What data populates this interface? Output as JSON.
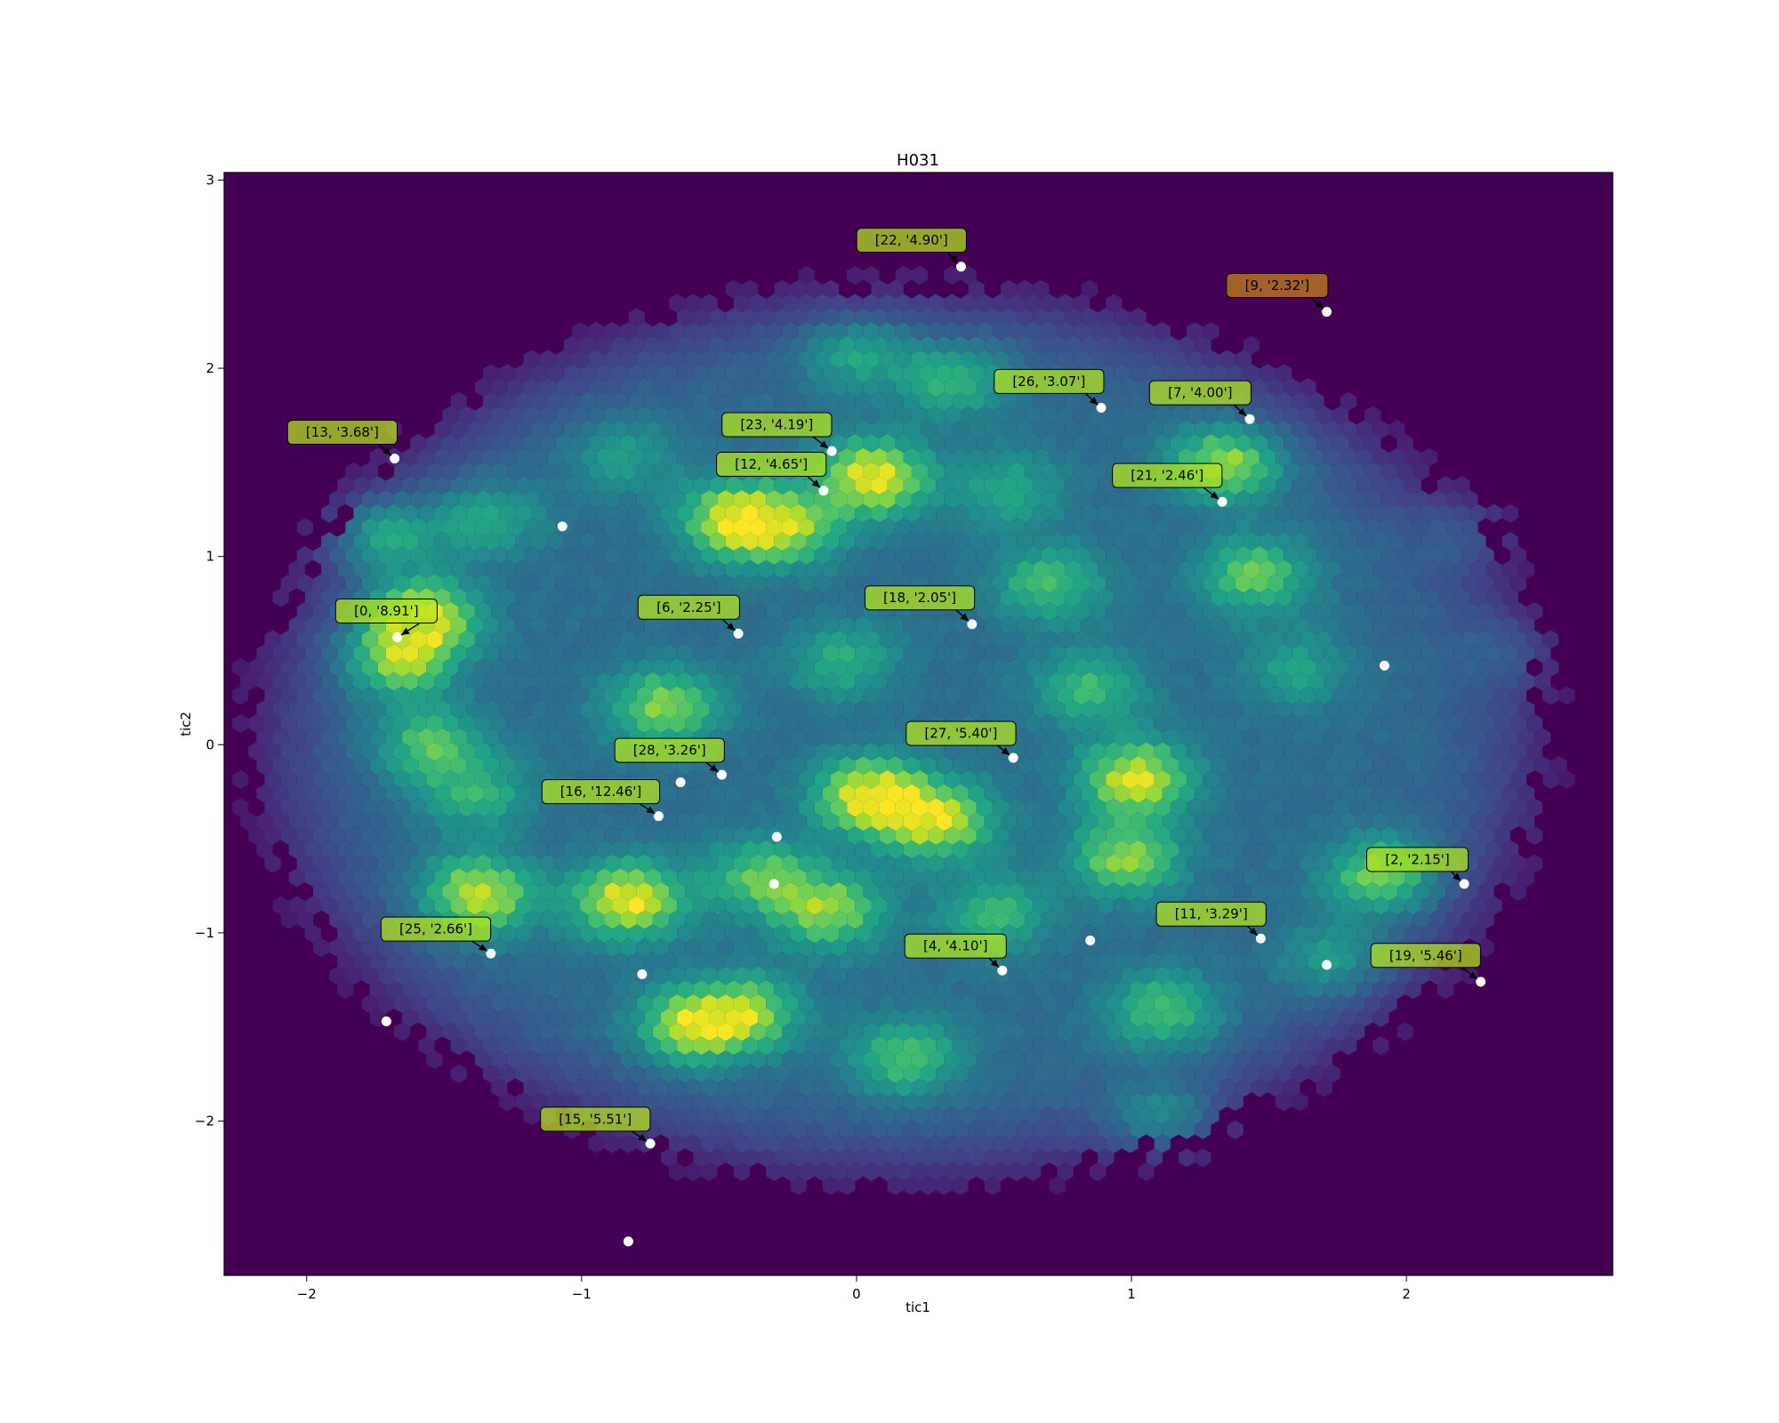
{
  "chart_data": {
    "type": "scatter",
    "background": "hexbin density (viridis)",
    "title": "H031",
    "xlabel": "tic1",
    "ylabel": "tic2",
    "xlim": [
      -2.3,
      2.75
    ],
    "ylim": [
      -2.82,
      3.04
    ],
    "xticks": [
      {
        "value": -2,
        "label": "−2"
      },
      {
        "value": -1,
        "label": "−1"
      },
      {
        "value": 0,
        "label": "0"
      },
      {
        "value": 1,
        "label": "1"
      },
      {
        "value": 2,
        "label": "2"
      }
    ],
    "yticks": [
      {
        "value": -2,
        "label": "−2"
      },
      {
        "value": -1,
        "label": "−1"
      },
      {
        "value": 0,
        "label": "0"
      },
      {
        "value": 1,
        "label": "1"
      },
      {
        "value": 2,
        "label": "2"
      },
      {
        "value": 3,
        "label": "3"
      }
    ],
    "colors": {
      "background": "#440154",
      "marker": "#ffffff",
      "annotation_box": "#b5e61d",
      "annotation_box_highlight": "#c8861a"
    },
    "density_peaks": [
      {
        "x": 0.06,
        "y": 1.42,
        "w": 1.0
      },
      {
        "x": -1.58,
        "y": 0.68,
        "w": 1.0
      },
      {
        "x": -1.76,
        "y": 1.14,
        "w": 0.92
      },
      {
        "x": -1.68,
        "y": 0.45,
        "w": 0.8
      },
      {
        "x": -1.38,
        "y": -0.8,
        "w": 0.95
      },
      {
        "x": -0.83,
        "y": -0.83,
        "w": 1.0
      },
      {
        "x": 0.05,
        "y": -0.27,
        "w": 1.0
      },
      {
        "x": 0.3,
        "y": -0.4,
        "w": 0.9
      },
      {
        "x": 1.02,
        "y": -0.18,
        "w": 0.95
      },
      {
        "x": 0.98,
        "y": -0.6,
        "w": 0.75
      },
      {
        "x": 1.15,
        "y": -2.06,
        "w": 1.0
      },
      {
        "x": -0.6,
        "y": -1.5,
        "w": 0.85
      },
      {
        "x": -0.4,
        "y": -1.42,
        "w": 0.7
      },
      {
        "x": -0.45,
        "y": 1.2,
        "w": 0.85
      },
      {
        "x": -0.25,
        "y": 1.15,
        "w": 0.7
      },
      {
        "x": 1.35,
        "y": 1.5,
        "w": 0.85
      },
      {
        "x": 2.3,
        "y": 1.17,
        "w": 0.7
      },
      {
        "x": 1.92,
        "y": -0.7,
        "w": 0.8
      },
      {
        "x": -0.7,
        "y": 0.2,
        "w": 0.75
      },
      {
        "x": -0.1,
        "y": -0.88,
        "w": 0.75
      },
      {
        "x": -0.35,
        "y": -0.7,
        "w": 0.6
      },
      {
        "x": 0.7,
        "y": 0.85,
        "w": 0.55
      },
      {
        "x": 1.45,
        "y": 0.9,
        "w": 0.65
      },
      {
        "x": 0.35,
        "y": 1.95,
        "w": 0.55
      },
      {
        "x": 0.0,
        "y": 2.1,
        "w": 0.5
      },
      {
        "x": -1.55,
        "y": 0.0,
        "w": 0.6
      },
      {
        "x": -1.38,
        "y": -0.27,
        "w": 0.45
      },
      {
        "x": -1.35,
        "y": 1.2,
        "w": 0.45
      },
      {
        "x": 0.18,
        "y": -1.67,
        "w": 0.6
      },
      {
        "x": 1.12,
        "y": -1.42,
        "w": 0.6
      },
      {
        "x": 2.45,
        "y": 0.52,
        "w": 0.45
      },
      {
        "x": 0.5,
        "y": -0.9,
        "w": 0.5
      },
      {
        "x": -0.05,
        "y": 0.45,
        "w": 0.45
      },
      {
        "x": 0.85,
        "y": 0.3,
        "w": 0.5
      },
      {
        "x": 1.6,
        "y": 0.4,
        "w": 0.35
      },
      {
        "x": -0.85,
        "y": 1.55,
        "w": 0.35
      },
      {
        "x": 0.55,
        "y": 1.35,
        "w": 0.4
      },
      {
        "x": 1.75,
        "y": -1.15,
        "w": 0.4
      }
    ],
    "points": [
      {
        "x": -1.67,
        "y": 0.57,
        "label": "[0, '8.91']",
        "lx": -1.71,
        "ly": 0.71
      },
      {
        "x": 2.21,
        "y": -0.74,
        "label": "[2, '2.15']",
        "lx": 2.04,
        "ly": -0.61
      },
      {
        "x": 0.53,
        "y": -1.2,
        "label": "[4, '4.10']",
        "lx": 0.36,
        "ly": -1.07
      },
      {
        "x": -0.43,
        "y": 0.59,
        "label": "[6, '2.25']",
        "lx": -0.61,
        "ly": 0.73
      },
      {
        "x": 1.43,
        "y": 1.73,
        "label": "[7, '4.00']",
        "lx": 1.25,
        "ly": 1.87
      },
      {
        "x": 1.71,
        "y": 2.3,
        "label": "[9, '2.32']",
        "lx": 1.53,
        "ly": 2.44,
        "highlight": true
      },
      {
        "x": 1.47,
        "y": -1.03,
        "label": "[11, '3.29']",
        "lx": 1.29,
        "ly": -0.9
      },
      {
        "x": -0.12,
        "y": 1.35,
        "label": "[12, '4.65']",
        "lx": -0.31,
        "ly": 1.49
      },
      {
        "x": -1.68,
        "y": 1.52,
        "label": "[13, '3.68']",
        "lx": -1.87,
        "ly": 1.66
      },
      {
        "x": -0.75,
        "y": -2.12,
        "label": "[15, '5.51']",
        "lx": -0.95,
        "ly": -1.99
      },
      {
        "x": -0.72,
        "y": -0.38,
        "label": "[16, '12.46']",
        "lx": -0.93,
        "ly": -0.25
      },
      {
        "x": 0.42,
        "y": 0.64,
        "label": "[18, '2.05']",
        "lx": 0.23,
        "ly": 0.78
      },
      {
        "x": 2.27,
        "y": -1.26,
        "label": "[19, '5.46']",
        "lx": 2.07,
        "ly": -1.12
      },
      {
        "x": 1.33,
        "y": 1.29,
        "label": "[21, '2.46']",
        "lx": 1.13,
        "ly": 1.43
      },
      {
        "x": 0.38,
        "y": 2.54,
        "label": "[22, '4.90']",
        "lx": 0.2,
        "ly": 2.68
      },
      {
        "x": -0.09,
        "y": 1.56,
        "label": "[23, '4.19']",
        "lx": -0.29,
        "ly": 1.7
      },
      {
        "x": -1.33,
        "y": -1.11,
        "label": "[25, '2.66']",
        "lx": -1.53,
        "ly": -0.98
      },
      {
        "x": 0.89,
        "y": 1.79,
        "label": "[26, '3.07']",
        "lx": 0.7,
        "ly": 1.93
      },
      {
        "x": 0.57,
        "y": -0.07,
        "label": "[27, '5.40']",
        "lx": 0.38,
        "ly": 0.06
      },
      {
        "x": -0.49,
        "y": -0.16,
        "label": "[28, '3.26']",
        "lx": -0.68,
        "ly": -0.03
      },
      {
        "x": -1.07,
        "y": 1.16
      },
      {
        "x": 1.92,
        "y": 0.42
      },
      {
        "x": -0.64,
        "y": -0.2
      },
      {
        "x": -0.29,
        "y": -0.49
      },
      {
        "x": -0.3,
        "y": -0.74
      },
      {
        "x": 0.85,
        "y": -1.04
      },
      {
        "x": -0.78,
        "y": -1.22
      },
      {
        "x": 1.71,
        "y": -1.17
      },
      {
        "x": -1.71,
        "y": -1.47
      },
      {
        "x": -0.83,
        "y": -2.64
      }
    ]
  }
}
